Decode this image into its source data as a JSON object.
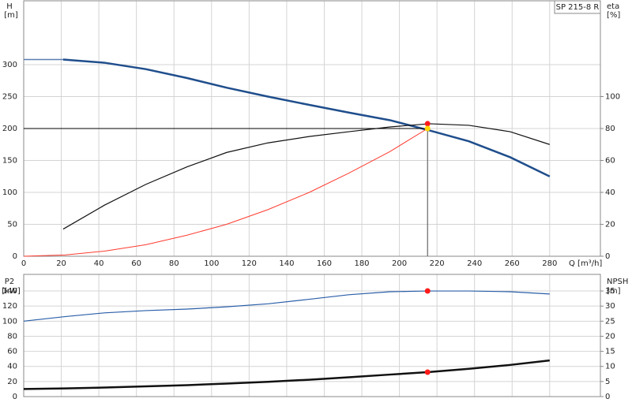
{
  "chart_data": [
    {
      "type": "line",
      "title": "SP 215-8 R",
      "y_label": "H",
      "y_unit": "[m]",
      "y2_label": "eta",
      "y2_unit": "[%]",
      "x_label": "Q [m³/h]",
      "xlim": [
        0,
        307
      ],
      "xticks": [
        0,
        20,
        40,
        60,
        80,
        100,
        120,
        140,
        160,
        180,
        200,
        220,
        240,
        260,
        280
      ],
      "ylim": [
        0,
        400
      ],
      "yticks": [
        0,
        50,
        100,
        150,
        200,
        250,
        300
      ],
      "y2lim": [
        0,
        160
      ],
      "y2ticks": [
        0,
        20,
        40,
        60,
        80,
        100
      ],
      "grid": true,
      "show_xtick_labels": true,
      "series": [
        {
          "color": "#5a7fb0",
          "width": 1.5,
          "x": [
            0,
            21
          ],
          "values": [
            308,
            308
          ]
        },
        {
          "color": "#1f4e8c",
          "width": 2.5,
          "x": [
            21,
            43,
            65,
            87,
            108,
            130,
            152,
            173,
            195,
            216,
            237,
            259,
            280
          ],
          "values": [
            308,
            303,
            293,
            279,
            264,
            250,
            237,
            225,
            213,
            197,
            180,
            155,
            125
          ]
        },
        {
          "color": "#111111",
          "width": 1.2,
          "axis": "y2",
          "x": [
            21,
            43,
            65,
            87,
            108,
            130,
            152,
            173,
            195,
            216,
            237,
            259,
            280
          ],
          "values": [
            17,
            32,
            45,
            56,
            65,
            71,
            75,
            78,
            81,
            83,
            82,
            78,
            70
          ]
        },
        {
          "color": "#ff3b2f",
          "width": 1,
          "x": [
            0,
            22,
            43,
            65,
            87,
            108,
            130,
            152,
            173,
            195,
            215
          ],
          "values": [
            0,
            2,
            8,
            18,
            33,
            50,
            73,
            100,
            130,
            164,
            200
          ]
        }
      ],
      "points": [
        {
          "x": 215,
          "y": 83,
          "axis": "y2",
          "color": "#ff1a1a"
        },
        {
          "x": 215,
          "y": 200,
          "color": "#ffd700",
          "guide": true
        }
      ]
    },
    {
      "type": "line",
      "y_label": "P2",
      "y_unit": "[kW]",
      "y2_label": "NPSH",
      "y2_unit": "[m]",
      "xlim": [
        0,
        307
      ],
      "xticks": [
        0,
        20,
        40,
        60,
        80,
        100,
        120,
        140,
        160,
        180,
        200,
        220,
        240,
        260,
        280
      ],
      "ylim": [
        0,
        162
      ],
      "yticks": [
        0,
        20,
        40,
        60,
        80,
        100,
        120,
        140
      ],
      "y2lim": [
        0,
        40.5
      ],
      "y2ticks": [
        0,
        5,
        10,
        15,
        20,
        25,
        30,
        35
      ],
      "grid": true,
      "show_xtick_labels": false,
      "series": [
        {
          "color": "#2a5ea8",
          "width": 1.2,
          "x": [
            0,
            22,
            43,
            65,
            87,
            108,
            130,
            152,
            173,
            195,
            215,
            237,
            259,
            280
          ],
          "values": [
            100,
            106,
            111,
            114,
            116,
            119,
            123,
            129,
            135,
            139,
            140,
            140,
            139,
            136
          ]
        },
        {
          "color": "#111111",
          "width": 2.5,
          "axis": "y2",
          "x": [
            0,
            22,
            43,
            65,
            87,
            108,
            130,
            152,
            173,
            195,
            215,
            237,
            259,
            280
          ],
          "values": [
            2.5,
            2.7,
            3,
            3.4,
            3.8,
            4.3,
            4.9,
            5.6,
            6.4,
            7.3,
            8.1,
            9.2,
            10.5,
            12
          ]
        }
      ],
      "points": [
        {
          "x": 215,
          "y": 140,
          "color": "#ff1a1a"
        },
        {
          "x": 215,
          "y": 8.1,
          "axis": "y2",
          "color": "#ff1a1a"
        }
      ]
    }
  ]
}
